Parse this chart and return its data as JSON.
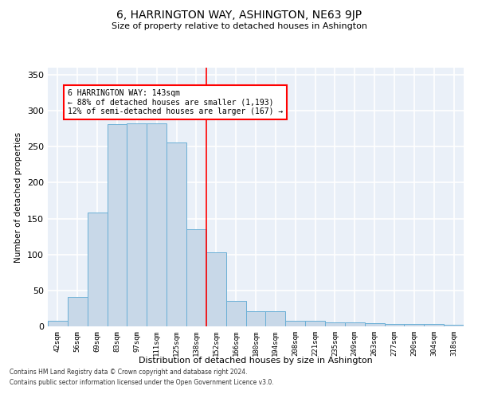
{
  "title": "6, HARRINGTON WAY, ASHINGTON, NE63 9JP",
  "subtitle": "Size of property relative to detached houses in Ashington",
  "xlabel": "Distribution of detached houses by size in Ashington",
  "ylabel": "Number of detached properties",
  "bar_labels": [
    "42sqm",
    "56sqm",
    "69sqm",
    "83sqm",
    "97sqm",
    "111sqm",
    "125sqm",
    "138sqm",
    "152sqm",
    "166sqm",
    "180sqm",
    "194sqm",
    "208sqm",
    "221sqm",
    "235sqm",
    "249sqm",
    "263sqm",
    "277sqm",
    "290sqm",
    "304sqm",
    "318sqm"
  ],
  "bar_values": [
    8,
    41,
    158,
    281,
    282,
    282,
    256,
    135,
    103,
    35,
    21,
    21,
    8,
    8,
    5,
    5,
    4,
    3,
    3,
    3,
    2
  ],
  "bar_color": "#c8d8e8",
  "bar_edge_color": "#6aafd6",
  "bar_linewidth": 0.7,
  "red_line_x": 7.5,
  "annotation_text": "6 HARRINGTON WAY: 143sqm\n← 88% of detached houses are smaller (1,193)\n12% of semi-detached houses are larger (167) →",
  "ylim": [
    0,
    360
  ],
  "yticks": [
    0,
    50,
    100,
    150,
    200,
    250,
    300,
    350
  ],
  "bg_color": "#eaf0f8",
  "grid_color": "white",
  "footer_line1": "Contains HM Land Registry data © Crown copyright and database right 2024.",
  "footer_line2": "Contains public sector information licensed under the Open Government Licence v3.0."
}
